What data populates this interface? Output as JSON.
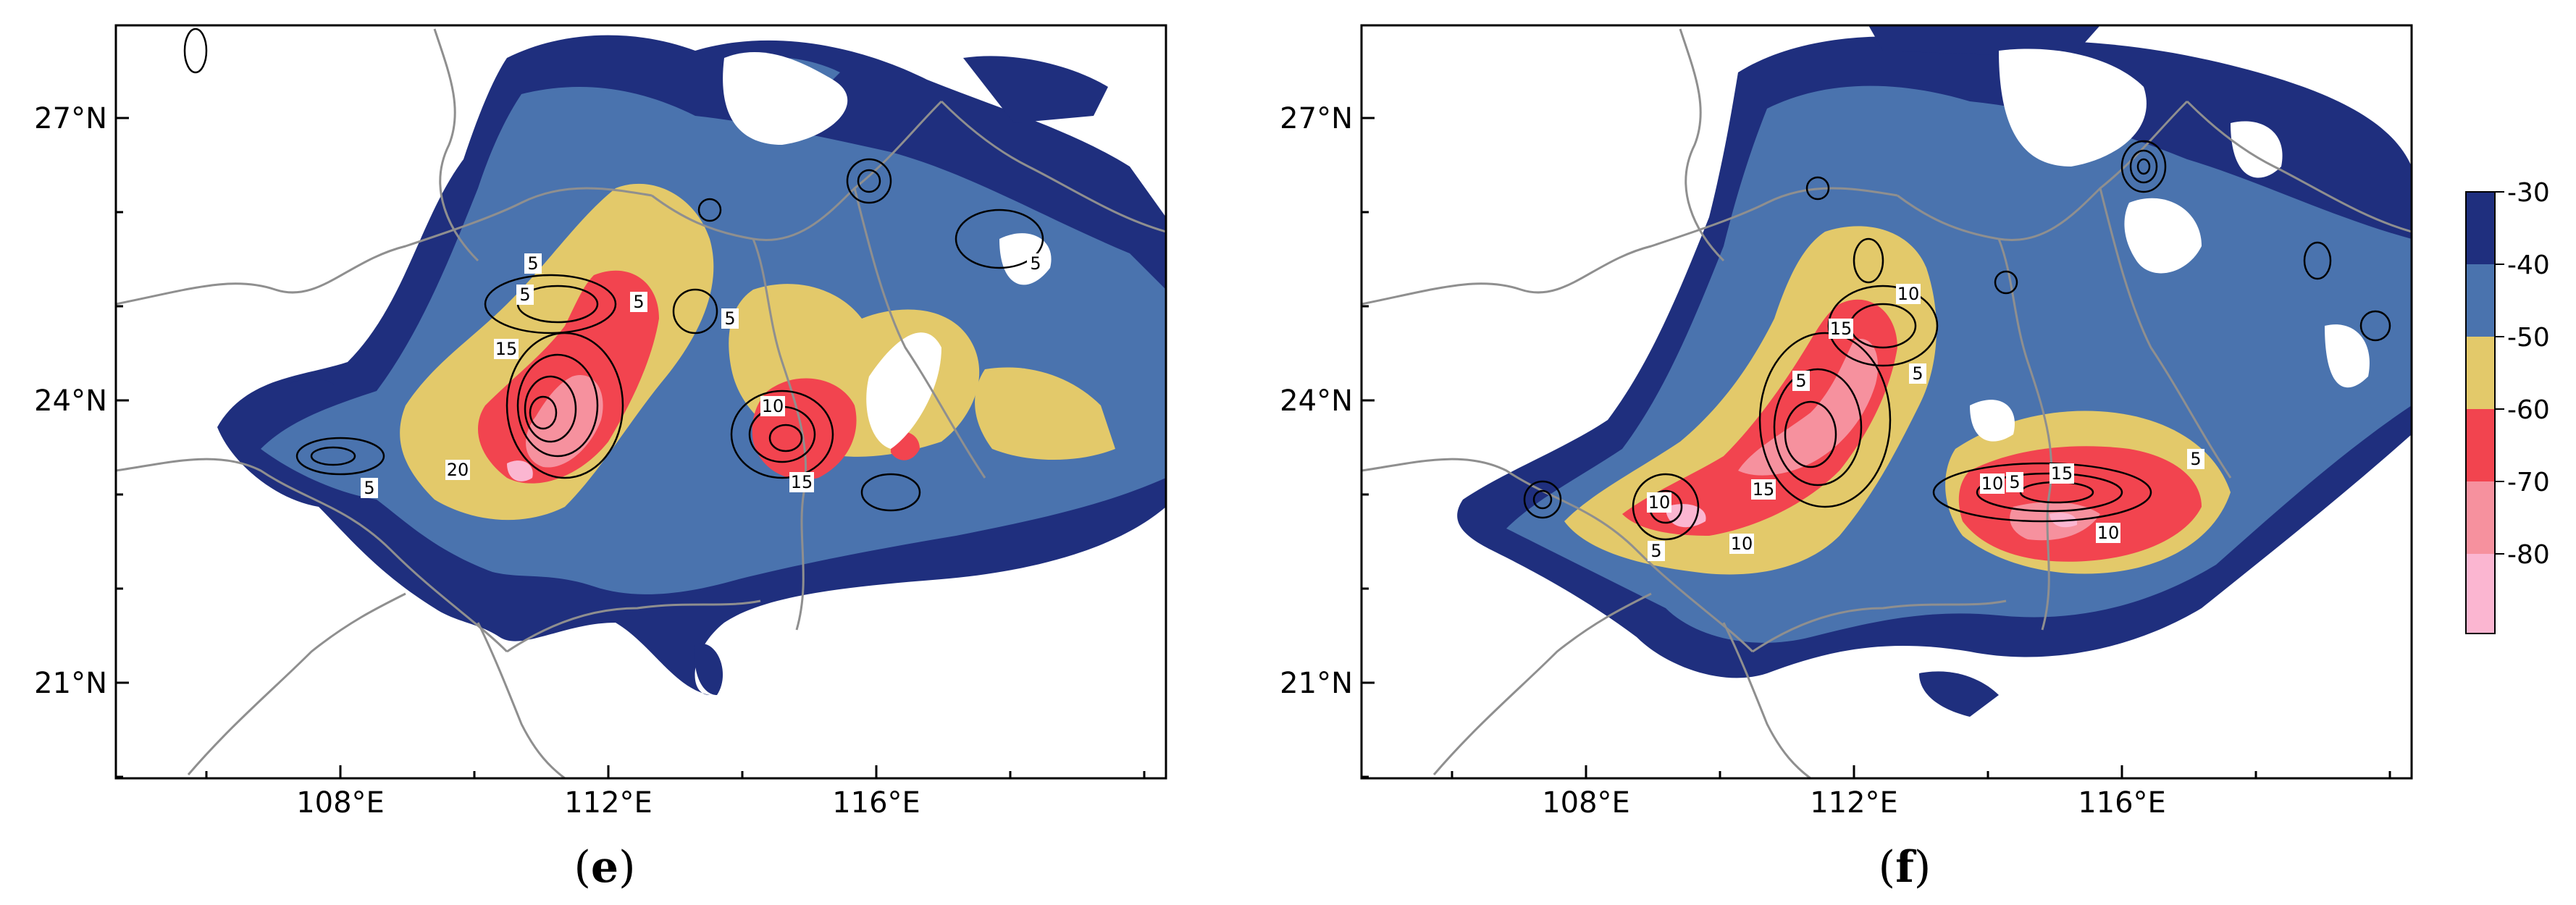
{
  "panels": [
    {
      "id": "e",
      "caption_letter": "e",
      "caption_open": "(",
      "caption_close": ")",
      "lat_labels": [
        "27°N",
        "24°N",
        "21°N"
      ],
      "lon_labels": [
        "108°E",
        "112°E",
        "116°E"
      ],
      "contour_labels": [
        "5",
        "5",
        "5",
        "15",
        "5",
        "10",
        "15",
        "20",
        "5",
        "5"
      ]
    },
    {
      "id": "f",
      "caption_letter": "f",
      "caption_open": "(",
      "caption_close": ")",
      "lat_labels": [
        "27°N",
        "24°N",
        "21°N"
      ],
      "lon_labels": [
        "108°E",
        "112°E",
        "116°E"
      ],
      "contour_labels": [
        "10",
        "15",
        "5",
        "5",
        "10",
        "15",
        "10",
        "5",
        "5",
        "10",
        "15",
        "5",
        "10"
      ]
    }
  ],
  "colorbar": {
    "levels": [
      "-30",
      "-40",
      "-50",
      "-60",
      "-70",
      "-80"
    ],
    "colors": [
      "#1f2f7e",
      "#4a73ae",
      "#e3c96a",
      "#f2444f",
      "#f6919e",
      "#fbb6d1"
    ]
  },
  "colors": {
    "very_cold": "#fbb6d1",
    "cold_pink": "#f6919e",
    "red": "#f2444f",
    "yellow": "#e3c96a",
    "mid_blue": "#4a73ae",
    "navy": "#1f2f7e",
    "border_gray": "#8f8f8f",
    "contour": "#000000"
  }
}
